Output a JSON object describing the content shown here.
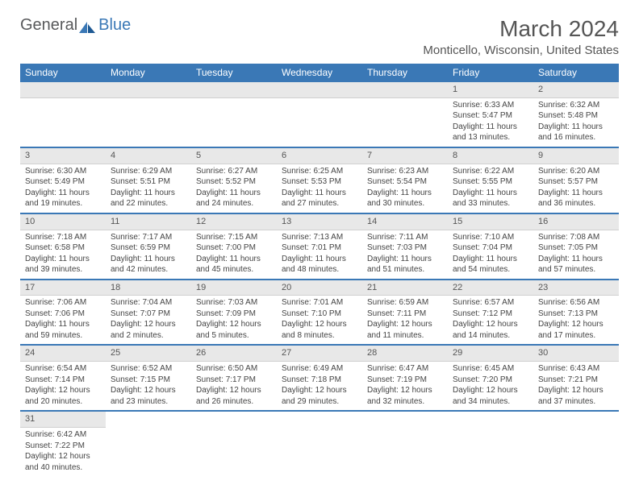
{
  "brand": {
    "part1": "General",
    "part2": "Blue"
  },
  "title": "March 2024",
  "location": "Monticello, Wisconsin, United States",
  "colors": {
    "header_bg": "#3a78b6",
    "header_text": "#ffffff",
    "daynum_bg": "#e8e8e8",
    "row_divider": "#3a78b6",
    "body_text": "#444444",
    "title_text": "#555555"
  },
  "weekdays": [
    "Sunday",
    "Monday",
    "Tuesday",
    "Wednesday",
    "Thursday",
    "Friday",
    "Saturday"
  ],
  "weeks": [
    [
      null,
      null,
      null,
      null,
      null,
      {
        "n": "1",
        "sr": "Sunrise: 6:33 AM",
        "ss": "Sunset: 5:47 PM",
        "dl": "Daylight: 11 hours and 13 minutes."
      },
      {
        "n": "2",
        "sr": "Sunrise: 6:32 AM",
        "ss": "Sunset: 5:48 PM",
        "dl": "Daylight: 11 hours and 16 minutes."
      }
    ],
    [
      {
        "n": "3",
        "sr": "Sunrise: 6:30 AM",
        "ss": "Sunset: 5:49 PM",
        "dl": "Daylight: 11 hours and 19 minutes."
      },
      {
        "n": "4",
        "sr": "Sunrise: 6:29 AM",
        "ss": "Sunset: 5:51 PM",
        "dl": "Daylight: 11 hours and 22 minutes."
      },
      {
        "n": "5",
        "sr": "Sunrise: 6:27 AM",
        "ss": "Sunset: 5:52 PM",
        "dl": "Daylight: 11 hours and 24 minutes."
      },
      {
        "n": "6",
        "sr": "Sunrise: 6:25 AM",
        "ss": "Sunset: 5:53 PM",
        "dl": "Daylight: 11 hours and 27 minutes."
      },
      {
        "n": "7",
        "sr": "Sunrise: 6:23 AM",
        "ss": "Sunset: 5:54 PM",
        "dl": "Daylight: 11 hours and 30 minutes."
      },
      {
        "n": "8",
        "sr": "Sunrise: 6:22 AM",
        "ss": "Sunset: 5:55 PM",
        "dl": "Daylight: 11 hours and 33 minutes."
      },
      {
        "n": "9",
        "sr": "Sunrise: 6:20 AM",
        "ss": "Sunset: 5:57 PM",
        "dl": "Daylight: 11 hours and 36 minutes."
      }
    ],
    [
      {
        "n": "10",
        "sr": "Sunrise: 7:18 AM",
        "ss": "Sunset: 6:58 PM",
        "dl": "Daylight: 11 hours and 39 minutes."
      },
      {
        "n": "11",
        "sr": "Sunrise: 7:17 AM",
        "ss": "Sunset: 6:59 PM",
        "dl": "Daylight: 11 hours and 42 minutes."
      },
      {
        "n": "12",
        "sr": "Sunrise: 7:15 AM",
        "ss": "Sunset: 7:00 PM",
        "dl": "Daylight: 11 hours and 45 minutes."
      },
      {
        "n": "13",
        "sr": "Sunrise: 7:13 AM",
        "ss": "Sunset: 7:01 PM",
        "dl": "Daylight: 11 hours and 48 minutes."
      },
      {
        "n": "14",
        "sr": "Sunrise: 7:11 AM",
        "ss": "Sunset: 7:03 PM",
        "dl": "Daylight: 11 hours and 51 minutes."
      },
      {
        "n": "15",
        "sr": "Sunrise: 7:10 AM",
        "ss": "Sunset: 7:04 PM",
        "dl": "Daylight: 11 hours and 54 minutes."
      },
      {
        "n": "16",
        "sr": "Sunrise: 7:08 AM",
        "ss": "Sunset: 7:05 PM",
        "dl": "Daylight: 11 hours and 57 minutes."
      }
    ],
    [
      {
        "n": "17",
        "sr": "Sunrise: 7:06 AM",
        "ss": "Sunset: 7:06 PM",
        "dl": "Daylight: 11 hours and 59 minutes."
      },
      {
        "n": "18",
        "sr": "Sunrise: 7:04 AM",
        "ss": "Sunset: 7:07 PM",
        "dl": "Daylight: 12 hours and 2 minutes."
      },
      {
        "n": "19",
        "sr": "Sunrise: 7:03 AM",
        "ss": "Sunset: 7:09 PM",
        "dl": "Daylight: 12 hours and 5 minutes."
      },
      {
        "n": "20",
        "sr": "Sunrise: 7:01 AM",
        "ss": "Sunset: 7:10 PM",
        "dl": "Daylight: 12 hours and 8 minutes."
      },
      {
        "n": "21",
        "sr": "Sunrise: 6:59 AM",
        "ss": "Sunset: 7:11 PM",
        "dl": "Daylight: 12 hours and 11 minutes."
      },
      {
        "n": "22",
        "sr": "Sunrise: 6:57 AM",
        "ss": "Sunset: 7:12 PM",
        "dl": "Daylight: 12 hours and 14 minutes."
      },
      {
        "n": "23",
        "sr": "Sunrise: 6:56 AM",
        "ss": "Sunset: 7:13 PM",
        "dl": "Daylight: 12 hours and 17 minutes."
      }
    ],
    [
      {
        "n": "24",
        "sr": "Sunrise: 6:54 AM",
        "ss": "Sunset: 7:14 PM",
        "dl": "Daylight: 12 hours and 20 minutes."
      },
      {
        "n": "25",
        "sr": "Sunrise: 6:52 AM",
        "ss": "Sunset: 7:15 PM",
        "dl": "Daylight: 12 hours and 23 minutes."
      },
      {
        "n": "26",
        "sr": "Sunrise: 6:50 AM",
        "ss": "Sunset: 7:17 PM",
        "dl": "Daylight: 12 hours and 26 minutes."
      },
      {
        "n": "27",
        "sr": "Sunrise: 6:49 AM",
        "ss": "Sunset: 7:18 PM",
        "dl": "Daylight: 12 hours and 29 minutes."
      },
      {
        "n": "28",
        "sr": "Sunrise: 6:47 AM",
        "ss": "Sunset: 7:19 PM",
        "dl": "Daylight: 12 hours and 32 minutes."
      },
      {
        "n": "29",
        "sr": "Sunrise: 6:45 AM",
        "ss": "Sunset: 7:20 PM",
        "dl": "Daylight: 12 hours and 34 minutes."
      },
      {
        "n": "30",
        "sr": "Sunrise: 6:43 AM",
        "ss": "Sunset: 7:21 PM",
        "dl": "Daylight: 12 hours and 37 minutes."
      }
    ],
    [
      {
        "n": "31",
        "sr": "Sunrise: 6:42 AM",
        "ss": "Sunset: 7:22 PM",
        "dl": "Daylight: 12 hours and 40 minutes."
      },
      null,
      null,
      null,
      null,
      null,
      null
    ]
  ]
}
